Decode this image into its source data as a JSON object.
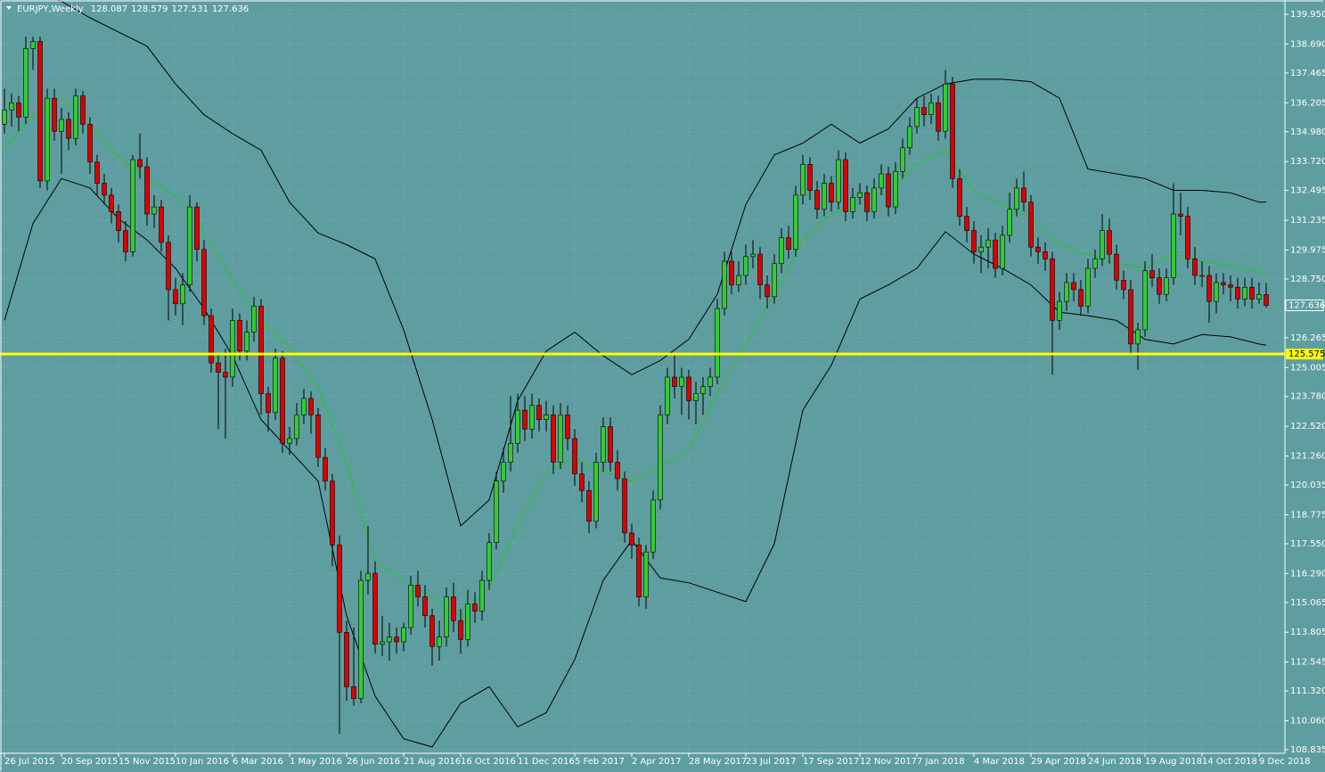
{
  "chart_data": {
    "type": "candlestick",
    "symbol": "EURJPY,Weekly",
    "background": "#5f9ea0",
    "bull_color": "#32cd32",
    "bear_color": "#dd0000",
    "band_color": "#000000",
    "middle_color": "#22c822",
    "grid": true,
    "xlim": [
      -0.625,
      179.625
    ],
    "ylim": [
      108.684,
      140.44
    ],
    "xticks": [
      {
        "value": 0,
        "label": "26 Jul 2015"
      },
      {
        "value": 8,
        "label": "20 Sep 2015"
      },
      {
        "value": 16,
        "label": "15 Nov 2015"
      },
      {
        "value": 24,
        "label": "10 Jan 2016"
      },
      {
        "value": 32,
        "label": "6 Mar 2016"
      },
      {
        "value": 40,
        "label": "1 May 2016"
      },
      {
        "value": 48,
        "label": "26 Jun 2016"
      },
      {
        "value": 56,
        "label": "21 Aug 2016"
      },
      {
        "value": 64,
        "label": "16 Oct 2016"
      },
      {
        "value": 72,
        "label": "11 Dec 2016"
      },
      {
        "value": 80,
        "label": "5 Feb 2017"
      },
      {
        "value": 88,
        "label": "2 Apr 2017"
      },
      {
        "value": 96,
        "label": "28 May 2017"
      },
      {
        "value": 104,
        "label": "23 Jul 2017"
      },
      {
        "value": 112,
        "label": "17 Sep 2017"
      },
      {
        "value": 120,
        "label": "12 Nov 2017"
      },
      {
        "value": 128,
        "label": "7 Jan 2018"
      },
      {
        "value": 136,
        "label": "4 Mar 2018"
      },
      {
        "value": 144,
        "label": "29 Apr 2018"
      },
      {
        "value": 152,
        "label": "24 Jun 2018"
      },
      {
        "value": 160,
        "label": "19 Aug 2018"
      },
      {
        "value": 168,
        "label": "14 Oct 2018"
      },
      {
        "value": 176,
        "label": "9 Dec 2018"
      }
    ],
    "yticks": [
      {
        "value": 139.95,
        "label": "139.950"
      },
      {
        "value": 138.69,
        "label": "138.690"
      },
      137.465,
      136.205,
      {
        "value": 134.98,
        "label": "134.980"
      },
      {
        "value": 133.72,
        "label": "133.720"
      },
      132.495,
      131.235,
      129.975,
      {
        "value": 128.75,
        "label": "128.750"
      },
      126.265,
      125.005,
      {
        "value": 123.78,
        "label": "123.780"
      },
      {
        "value": 122.52,
        "label": "122.520"
      },
      {
        "value": 121.26,
        "label": "121.260"
      },
      120.035,
      118.775,
      {
        "value": 117.55,
        "label": "117.550"
      },
      {
        "value": 116.29,
        "label": "116.290"
      },
      115.065,
      113.805,
      112.545,
      {
        "value": 111.32,
        "label": "111.320"
      },
      {
        "value": 110.06,
        "label": "110.060"
      },
      108.835
    ],
    "hline": {
      "value": 125.575,
      "color": "#ffff00"
    },
    "ohlc": [
      [
        135.3,
        136.8,
        134.9,
        135.9
      ],
      [
        135.9,
        136.6,
        135.2,
        136.2
      ],
      [
        136.2,
        136.5,
        135.0,
        135.6
      ],
      [
        135.6,
        139.0,
        135.3,
        138.5
      ],
      [
        138.5,
        139.0,
        137.6,
        138.8
      ],
      [
        138.8,
        139.0,
        132.6,
        132.9
      ],
      [
        132.9,
        136.8,
        132.5,
        136.4
      ],
      [
        136.4,
        136.8,
        134.6,
        135.0
      ],
      [
        135.0,
        136.0,
        133.2,
        135.5
      ],
      [
        135.5,
        135.8,
        134.2,
        134.7
      ],
      [
        134.7,
        136.8,
        134.4,
        136.5
      ],
      [
        136.5,
        136.7,
        134.9,
        135.3
      ],
      [
        135.3,
        135.6,
        133.2,
        133.7
      ],
      [
        133.7,
        134.0,
        132.3,
        132.8
      ],
      [
        132.8,
        133.2,
        131.9,
        132.3
      ],
      [
        132.3,
        132.6,
        131.1,
        131.6
      ],
      [
        131.6,
        131.9,
        130.3,
        130.8
      ],
      [
        130.8,
        131.2,
        129.5,
        129.9
      ],
      [
        129.9,
        134.0,
        129.7,
        133.8
      ],
      [
        133.8,
        134.9,
        133.0,
        133.5
      ],
      [
        133.5,
        133.9,
        131.0,
        131.5
      ],
      [
        131.5,
        132.3,
        130.9,
        131.8
      ],
      [
        131.8,
        132.1,
        129.9,
        130.3
      ],
      [
        130.3,
        130.6,
        127.0,
        128.3
      ],
      [
        128.3,
        128.8,
        127.2,
        127.7
      ],
      [
        127.7,
        129.0,
        126.8,
        128.5
      ],
      [
        128.5,
        132.3,
        128.2,
        131.8
      ],
      [
        131.8,
        132.0,
        129.5,
        130.0
      ],
      [
        130.0,
        130.4,
        126.8,
        127.2
      ],
      [
        127.2,
        127.5,
        124.8,
        125.2
      ],
      [
        125.2,
        125.6,
        122.4,
        124.8
      ],
      [
        124.8,
        125.8,
        122.0,
        124.6
      ],
      [
        124.6,
        127.5,
        124.2,
        127.0
      ],
      [
        127.0,
        127.3,
        125.3,
        125.7
      ],
      [
        125.7,
        127.0,
        125.3,
        126.5
      ],
      [
        126.5,
        128.0,
        126.1,
        127.6
      ],
      [
        127.6,
        127.9,
        123.0,
        123.9
      ],
      [
        123.9,
        124.2,
        122.3,
        123.1
      ],
      [
        123.1,
        125.8,
        122.8,
        125.4
      ],
      [
        125.4,
        125.7,
        121.4,
        121.8
      ],
      [
        121.8,
        122.5,
        121.3,
        122.0
      ],
      [
        122.0,
        123.5,
        121.7,
        123.0
      ],
      [
        123.0,
        124.1,
        122.6,
        123.7
      ],
      [
        123.7,
        124.0,
        122.2,
        123.0
      ],
      [
        123.0,
        123.3,
        120.8,
        121.2
      ],
      [
        121.2,
        121.6,
        119.8,
        120.2
      ],
      [
        120.2,
        120.5,
        116.6,
        117.5
      ],
      [
        117.5,
        117.9,
        109.5,
        113.8
      ],
      [
        113.8,
        114.3,
        110.9,
        111.5
      ],
      [
        111.5,
        114.0,
        110.7,
        111.0
      ],
      [
        111.0,
        116.4,
        110.8,
        116.0
      ],
      [
        116.0,
        118.3,
        115.4,
        116.3
      ],
      [
        116.3,
        116.8,
        112.9,
        113.3
      ],
      [
        113.3,
        114.5,
        112.8,
        113.4
      ],
      [
        113.4,
        114.2,
        112.6,
        113.6
      ],
      [
        113.6,
        114.0,
        112.9,
        113.4
      ],
      [
        113.4,
        114.2,
        113.0,
        114.0
      ],
      [
        114.0,
        116.2,
        113.7,
        115.8
      ],
      [
        115.8,
        116.4,
        114.9,
        115.3
      ],
      [
        115.3,
        115.8,
        114.0,
        114.5
      ],
      [
        114.5,
        114.8,
        112.4,
        113.2
      ],
      [
        113.2,
        114.3,
        112.6,
        113.6
      ],
      [
        113.6,
        115.7,
        113.2,
        115.3
      ],
      [
        115.3,
        115.9,
        113.8,
        114.3
      ],
      [
        114.3,
        114.8,
        112.9,
        113.5
      ],
      [
        113.5,
        115.6,
        113.2,
        115.0
      ],
      [
        115.0,
        115.5,
        114.2,
        114.7
      ],
      [
        114.7,
        116.4,
        114.3,
        116.0
      ],
      [
        116.0,
        118.0,
        115.6,
        117.6
      ],
      [
        117.6,
        120.6,
        117.3,
        120.2
      ],
      [
        120.2,
        121.6,
        119.7,
        121.0
      ],
      [
        121.0,
        123.8,
        120.6,
        121.8
      ],
      [
        121.8,
        123.9,
        121.4,
        123.2
      ],
      [
        123.2,
        123.8,
        121.9,
        122.4
      ],
      [
        122.4,
        123.9,
        122.0,
        123.4
      ],
      [
        123.4,
        123.7,
        122.3,
        122.8
      ],
      [
        122.8,
        123.6,
        122.3,
        123.0
      ],
      [
        123.0,
        123.4,
        120.5,
        121.0
      ],
      [
        121.0,
        123.5,
        120.7,
        123.0
      ],
      [
        123.0,
        123.4,
        121.5,
        122.0
      ],
      [
        122.0,
        122.4,
        120.0,
        120.5
      ],
      [
        120.5,
        121.0,
        119.3,
        119.8
      ],
      [
        119.8,
        120.2,
        118.0,
        118.5
      ],
      [
        118.5,
        121.4,
        118.2,
        121.0
      ],
      [
        121.0,
        122.9,
        120.6,
        122.5
      ],
      [
        122.5,
        122.9,
        120.6,
        121.0
      ],
      [
        121.0,
        121.5,
        119.8,
        120.3
      ],
      [
        120.3,
        120.6,
        117.6,
        118.0
      ],
      [
        118.0,
        118.4,
        116.9,
        117.5
      ],
      [
        117.5,
        117.8,
        114.9,
        115.3
      ],
      [
        115.3,
        117.5,
        114.8,
        117.2
      ],
      [
        117.2,
        119.8,
        116.9,
        119.4
      ],
      [
        119.4,
        123.4,
        119.0,
        123.0
      ],
      [
        123.0,
        125.0,
        122.6,
        124.6
      ],
      [
        124.6,
        125.6,
        123.7,
        124.2
      ],
      [
        124.2,
        125.0,
        123.0,
        124.6
      ],
      [
        124.6,
        124.9,
        122.8,
        123.6
      ],
      [
        123.6,
        124.4,
        122.6,
        123.9
      ],
      [
        123.9,
        124.6,
        123.0,
        124.2
      ],
      [
        124.2,
        125.0,
        123.8,
        124.6
      ],
      [
        124.6,
        127.9,
        124.3,
        127.5
      ],
      [
        127.5,
        129.9,
        127.2,
        129.5
      ],
      [
        129.5,
        129.9,
        128.1,
        128.5
      ],
      [
        128.5,
        129.5,
        128.2,
        128.9
      ],
      [
        128.9,
        130.2,
        128.5,
        129.7
      ],
      [
        129.7,
        130.4,
        129.2,
        129.8
      ],
      [
        129.8,
        130.1,
        127.9,
        128.5
      ],
      [
        128.5,
        128.9,
        127.5,
        128.0
      ],
      [
        128.0,
        129.8,
        127.7,
        129.4
      ],
      [
        129.4,
        130.9,
        129.0,
        130.5
      ],
      [
        130.5,
        131.0,
        129.6,
        130.0
      ],
      [
        130.0,
        132.7,
        129.7,
        132.3
      ],
      [
        132.3,
        134.0,
        131.9,
        133.6
      ],
      [
        133.6,
        133.9,
        132.1,
        132.5
      ],
      [
        132.5,
        132.9,
        131.3,
        131.7
      ],
      [
        131.7,
        133.2,
        131.4,
        132.8
      ],
      [
        132.8,
        133.1,
        131.6,
        132.0
      ],
      [
        132.0,
        134.2,
        131.7,
        133.8
      ],
      [
        133.8,
        134.1,
        131.2,
        131.6
      ],
      [
        131.6,
        132.6,
        131.3,
        132.2
      ],
      [
        132.2,
        132.8,
        131.9,
        132.4
      ],
      [
        132.4,
        132.7,
        131.2,
        131.6
      ],
      [
        131.6,
        133.0,
        131.3,
        132.6
      ],
      [
        132.6,
        133.6,
        132.3,
        133.2
      ],
      [
        133.2,
        133.5,
        131.4,
        131.8
      ],
      [
        131.8,
        133.7,
        131.5,
        133.3
      ],
      [
        133.3,
        134.7,
        133.0,
        134.3
      ],
      [
        134.3,
        135.6,
        134.0,
        135.2
      ],
      [
        135.2,
        136.4,
        134.9,
        136.0
      ],
      [
        136.0,
        136.5,
        135.2,
        135.7
      ],
      [
        135.7,
        136.6,
        135.3,
        136.2
      ],
      [
        136.2,
        136.5,
        134.6,
        135.0
      ],
      [
        135.0,
        137.6,
        134.7,
        137.0
      ],
      [
        137.0,
        137.3,
        132.6,
        133.0
      ],
      [
        133.0,
        133.4,
        131.0,
        131.4
      ],
      [
        131.4,
        131.8,
        130.3,
        130.8
      ],
      [
        130.8,
        131.2,
        129.4,
        129.9
      ],
      [
        129.9,
        130.6,
        129.0,
        130.1
      ],
      [
        130.1,
        130.9,
        129.2,
        130.4
      ],
      [
        130.4,
        130.7,
        128.8,
        129.2
      ],
      [
        129.2,
        131.0,
        128.9,
        130.6
      ],
      [
        130.6,
        132.4,
        130.3,
        131.7
      ],
      [
        131.7,
        133.0,
        131.4,
        132.6
      ],
      [
        132.6,
        133.3,
        131.6,
        132.0
      ],
      [
        132.0,
        132.3,
        129.7,
        130.1
      ],
      [
        130.1,
        130.5,
        129.4,
        129.9
      ],
      [
        129.9,
        130.3,
        129.1,
        129.6
      ],
      [
        129.6,
        129.9,
        124.7,
        127.0
      ],
      [
        127.0,
        128.2,
        126.6,
        127.8
      ],
      [
        127.8,
        129.0,
        127.4,
        128.6
      ],
      [
        128.6,
        129.0,
        127.8,
        128.3
      ],
      [
        128.3,
        128.7,
        127.2,
        127.6
      ],
      [
        127.6,
        129.6,
        127.3,
        129.2
      ],
      [
        129.2,
        130.0,
        128.8,
        129.6
      ],
      [
        129.6,
        131.5,
        129.3,
        130.8
      ],
      [
        130.8,
        131.3,
        129.4,
        129.8
      ],
      [
        129.8,
        130.2,
        128.3,
        128.7
      ],
      [
        128.7,
        129.1,
        127.9,
        128.3
      ],
      [
        128.3,
        128.7,
        125.6,
        126.0
      ],
      [
        126.0,
        126.9,
        124.9,
        126.6
      ],
      [
        126.6,
        129.5,
        126.3,
        129.1
      ],
      [
        129.1,
        129.8,
        128.4,
        128.8
      ],
      [
        128.8,
        129.2,
        127.7,
        128.1
      ],
      [
        128.1,
        129.2,
        127.8,
        128.8
      ],
      [
        128.8,
        132.8,
        128.5,
        131.5
      ],
      [
        131.5,
        132.4,
        130.6,
        131.4
      ],
      [
        131.4,
        131.8,
        129.2,
        129.6
      ],
      [
        129.6,
        130.1,
        128.5,
        128.9
      ],
      [
        128.9,
        129.5,
        128.4,
        128.9
      ],
      [
        128.9,
        129.3,
        126.9,
        127.8
      ],
      [
        127.8,
        129.0,
        127.3,
        128.6
      ],
      [
        128.6,
        129.0,
        128.1,
        128.5
      ],
      [
        128.5,
        128.9,
        127.8,
        128.4
      ],
      [
        128.4,
        128.8,
        127.5,
        127.9
      ],
      [
        127.9,
        128.8,
        127.6,
        128.4
      ],
      [
        128.4,
        128.8,
        127.5,
        127.9
      ],
      [
        127.9,
        128.6,
        127.7,
        128.087
      ],
      [
        128.087,
        128.579,
        127.531,
        127.636
      ]
    ],
    "bands": {
      "x": [
        0,
        4,
        8,
        12,
        16,
        20,
        24,
        28,
        32,
        36,
        40,
        44,
        48,
        52,
        56,
        60,
        64,
        68,
        72,
        76,
        80,
        84,
        88,
        92,
        96,
        100,
        104,
        108,
        112,
        116,
        120,
        124,
        128,
        132,
        136,
        140,
        144,
        148,
        152,
        156,
        160,
        164,
        168,
        172,
        176,
        177
      ],
      "upper": [
        141.0,
        141.0,
        140.5,
        139.8,
        139.2,
        138.6,
        137.0,
        135.7,
        134.9,
        134.2,
        132.0,
        130.7,
        130.2,
        129.6,
        126.6,
        122.8,
        118.3,
        119.4,
        123.6,
        125.7,
        126.5,
        125.5,
        124.7,
        125.3,
        126.2,
        128.1,
        131.9,
        134.0,
        134.5,
        135.3,
        134.5,
        135.1,
        136.4,
        137.0,
        137.2,
        137.2,
        137.1,
        136.4,
        133.4,
        133.2,
        133.0,
        132.5,
        132.5,
        132.4,
        132.0,
        132.0
      ],
      "middle": [
        134.3,
        135.65,
        136.4,
        135.3,
        133.95,
        133.0,
        132.25,
        130.75,
        128.7,
        127.0,
        125.85,
        124.15,
        120.95,
        116.8,
        116.0,
        115.3,
        114.5,
        115.65,
        118.3,
        120.6,
        121.15,
        120.6,
        120.2,
        120.8,
        121.5,
        123.96,
        126.0,
        128.1,
        130.4,
        131.5,
        131.9,
        132.45,
        133.6,
        134.2,
        132.45,
        131.9,
        131.3,
        130.2,
        129.8,
        129.4,
        129.2,
        129.8,
        129.5,
        129.3,
        129.05,
        128.9
      ],
      "lower": [
        127.0,
        131.1,
        133.0,
        132.6,
        131.3,
        130.4,
        129.2,
        127.5,
        125.5,
        122.8,
        121.5,
        120.2,
        114.5,
        111.1,
        109.3,
        108.95,
        110.8,
        111.5,
        109.8,
        110.4,
        112.65,
        116.0,
        117.7,
        116.1,
        115.9,
        115.5,
        115.1,
        117.55,
        123.2,
        125.1,
        127.9,
        128.5,
        129.2,
        130.75,
        129.8,
        129.2,
        128.5,
        127.35,
        127.2,
        127.0,
        126.2,
        126.0,
        126.4,
        126.3,
        126.0,
        125.95
      ]
    }
  }
}
